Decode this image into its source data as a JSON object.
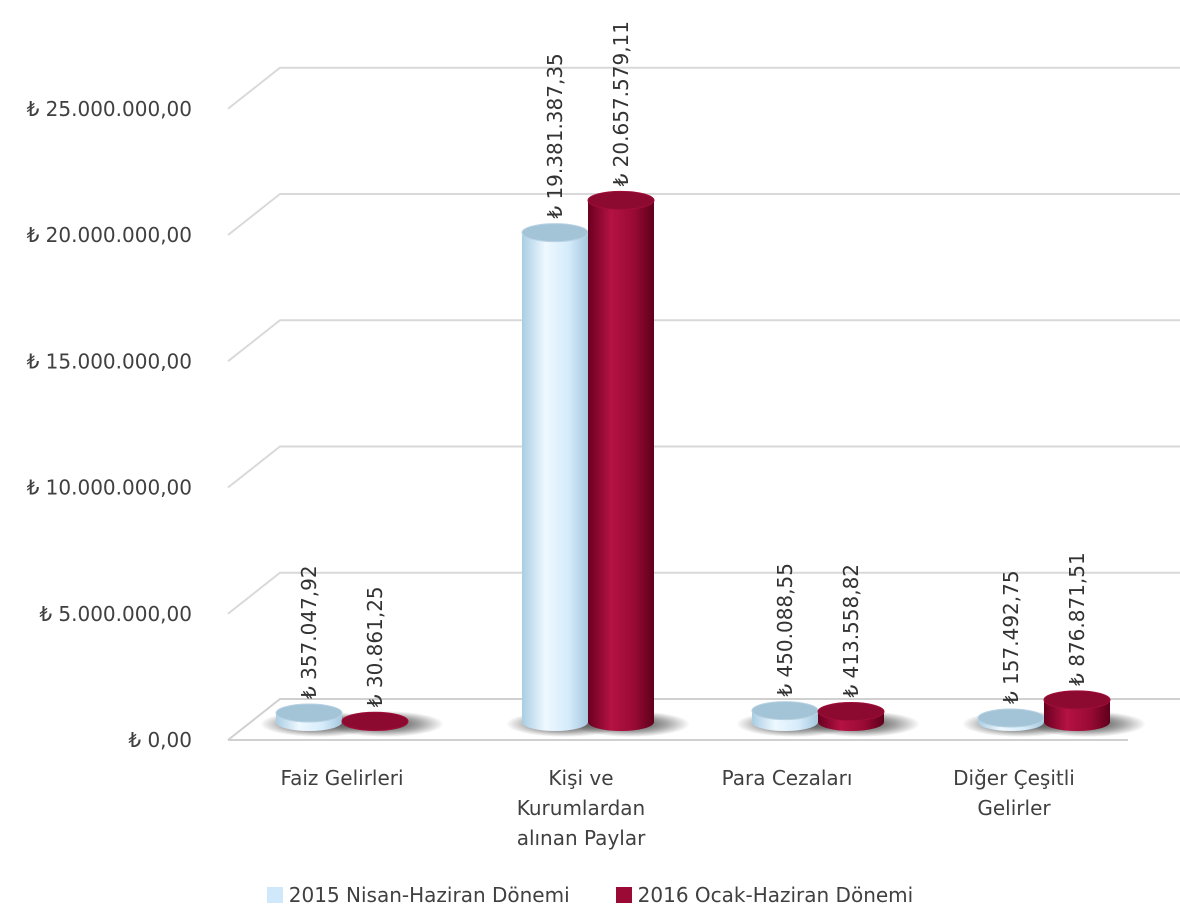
{
  "chart_data": {
    "type": "bar",
    "style": "3d-cylinder",
    "categories": [
      [
        "Faiz Gelirleri"
      ],
      [
        "Kişi ve",
        "Kurumlardan",
        "alınan Paylar"
      ],
      [
        "Para Cezaları"
      ],
      [
        "Diğer Çeşitli",
        "Gelirler"
      ]
    ],
    "series": [
      {
        "name": "2015 Nisan-Haziran Dönemi",
        "color": "#cfe9fb",
        "values": [
          357047.92,
          19381387.35,
          450088.55,
          157492.75
        ],
        "labels": [
          "₺ 357.047,92",
          "₺ 19.381.387,35",
          "₺ 450.088,55",
          "₺ 157.492,75"
        ]
      },
      {
        "name": "2016 Ocak-Haziran Dönemi",
        "color": "#9b0a35",
        "values": [
          30861.25,
          20657579.11,
          413558.82,
          876871.51
        ],
        "labels": [
          "₺ 30.861,25",
          "₺ 20.657.579,11",
          "₺ 413.558,82",
          "₺ 876.871,51"
        ]
      }
    ],
    "yticks": [
      "₺ 0,00",
      "₺ 5.000.000,00",
      "₺ 10.000.000,00",
      "₺ 15.000.000,00",
      "₺ 20.000.000,00",
      "₺ 25.000.000,00"
    ],
    "ylim": [
      0,
      25000000
    ],
    "grid": true,
    "legend_position": "bottom"
  }
}
